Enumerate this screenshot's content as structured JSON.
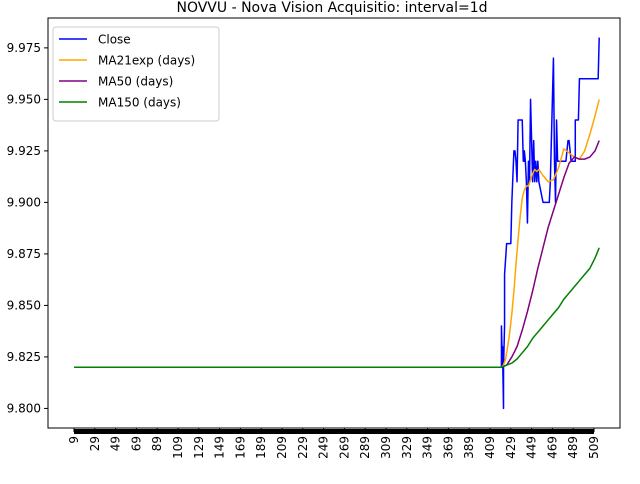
{
  "chart_data": {
    "type": "line",
    "title": "NOVVU - Nova Vision Acquisitio: interval=1d",
    "xlabel": "",
    "ylabel": "",
    "xlim": [
      -16,
      534
    ],
    "ylim": [
      9.7905,
      9.9895
    ],
    "x_ticks": [
      9,
      29,
      49,
      69,
      89,
      109,
      129,
      149,
      169,
      189,
      209,
      229,
      249,
      269,
      289,
      309,
      329,
      349,
      369,
      389,
      409,
      429,
      449,
      469,
      489,
      509
    ],
    "y_ticks": [
      9.8,
      9.825,
      9.85,
      9.875,
      9.9,
      9.925,
      9.95,
      9.975
    ],
    "y_tick_labels": [
      "9.800",
      "9.825",
      "9.850",
      "9.875",
      "9.900",
      "9.925",
      "9.950",
      "9.975"
    ],
    "grid": false,
    "legend_position": "upper-left",
    "series": [
      {
        "name": "Close",
        "color": "#0000ff",
        "x": [
          9,
          420,
          420,
          421,
          421,
          422,
          422,
          423,
          423,
          425,
          426,
          427,
          429,
          430,
          432,
          433,
          434,
          435,
          436,
          440,
          441,
          442,
          442,
          443,
          444,
          445,
          446,
          447,
          448,
          449,
          450,
          451,
          452,
          453,
          454,
          455,
          456,
          460,
          463,
          466,
          467,
          470,
          470,
          471,
          472,
          473,
          474,
          476,
          478,
          480,
          482,
          484,
          485,
          486,
          487,
          488,
          490,
          491,
          491,
          492,
          493,
          494,
          495,
          496,
          497,
          498,
          500,
          501,
          503,
          504,
          506,
          507,
          508,
          509,
          510,
          511,
          512,
          513,
          514
        ],
        "y": [
          9.82,
          9.82,
          9.84,
          9.82,
          9.83,
          9.8,
          9.82,
          9.84,
          9.865,
          9.88,
          9.88,
          9.88,
          9.88,
          9.9,
          9.925,
          9.925,
          9.92,
          9.91,
          9.94,
          9.94,
          9.92,
          9.92,
          9.925,
          9.92,
          9.91,
          9.89,
          9.92,
          9.91,
          9.95,
          9.93,
          9.91,
          9.93,
          9.91,
          9.92,
          9.91,
          9.92,
          9.91,
          9.9,
          9.9,
          9.9,
          9.91,
          9.97,
          9.97,
          9.92,
          9.9,
          9.94,
          9.92,
          9.92,
          9.92,
          9.92,
          9.92,
          9.93,
          9.93,
          9.925,
          9.92,
          9.92,
          9.92,
          9.92,
          9.94,
          9.94,
          9.94,
          9.94,
          9.96,
          9.96,
          9.96,
          9.96,
          9.96,
          9.96,
          9.96,
          9.96,
          9.96,
          9.96,
          9.96,
          9.96,
          9.96,
          9.96,
          9.96,
          9.96,
          9.98
        ]
      },
      {
        "name": "MA21exp (days)",
        "color": "#ffa500",
        "x": [
          9,
          420,
          422,
          424,
          426,
          428,
          430,
          432,
          434,
          436,
          438,
          440,
          442,
          444,
          446,
          448,
          450,
          452,
          454,
          456,
          460,
          465,
          470,
          475,
          480,
          485,
          490,
          495,
          500,
          505,
          510,
          514
        ],
        "y": [
          9.82,
          9.82,
          9.821,
          9.824,
          9.83,
          9.837,
          9.846,
          9.857,
          9.87,
          9.882,
          9.893,
          9.902,
          9.906,
          9.908,
          9.908,
          9.911,
          9.914,
          9.916,
          9.915,
          9.916,
          9.913,
          9.91,
          9.911,
          9.917,
          9.926,
          9.924,
          9.922,
          9.921,
          9.925,
          9.933,
          9.942,
          9.95
        ]
      },
      {
        "name": "MA50 (days)",
        "color": "#800080",
        "x": [
          9,
          420,
          425,
          430,
          435,
          440,
          445,
          450,
          455,
          460,
          465,
          470,
          475,
          480,
          485,
          490,
          495,
          500,
          505,
          510,
          514
        ],
        "y": [
          9.82,
          9.82,
          9.821,
          9.825,
          9.83,
          9.838,
          9.847,
          9.857,
          9.868,
          9.878,
          9.888,
          9.896,
          9.904,
          9.912,
          9.919,
          9.922,
          9.921,
          9.921,
          9.922,
          9.925,
          9.93
        ]
      },
      {
        "name": "MA150 (days)",
        "color": "#008000",
        "x": [
          9,
          420,
          425,
          430,
          435,
          440,
          445,
          450,
          455,
          460,
          465,
          470,
          475,
          480,
          485,
          490,
          495,
          500,
          505,
          510,
          514
        ],
        "y": [
          9.82,
          9.82,
          9.821,
          9.822,
          9.824,
          9.827,
          9.83,
          9.834,
          9.837,
          9.84,
          9.843,
          9.846,
          9.849,
          9.853,
          9.856,
          9.859,
          9.862,
          9.865,
          9.868,
          9.873,
          9.878
        ]
      }
    ]
  }
}
